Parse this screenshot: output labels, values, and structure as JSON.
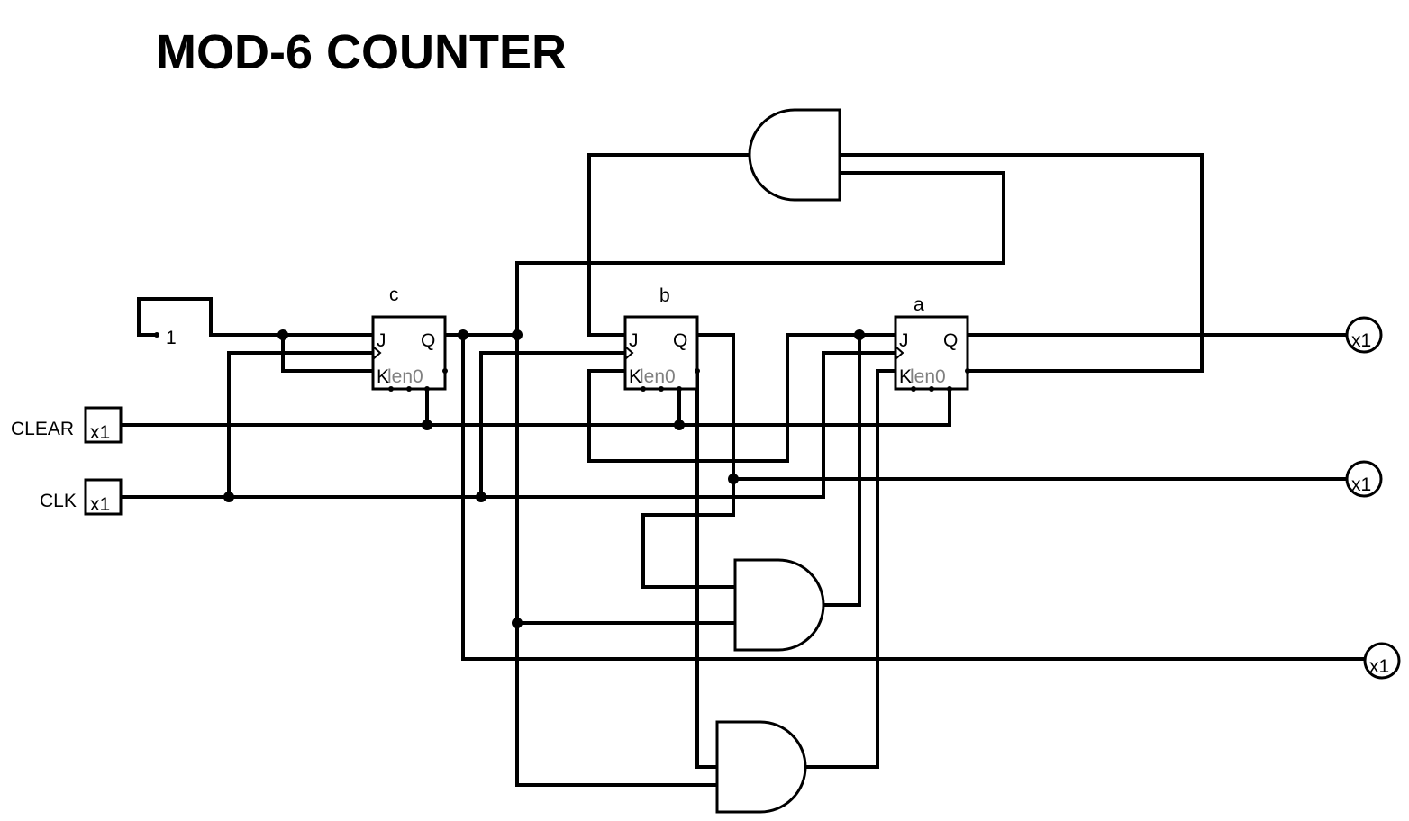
{
  "title": "MOD-6 COUNTER",
  "constant": {
    "value": "1"
  },
  "inputs": [
    {
      "label": "CLEAR",
      "value": "x1"
    },
    {
      "label": "CLK",
      "value": "x1"
    }
  ],
  "flip_flops": [
    {
      "name": "c",
      "j": "J",
      "k": "K",
      "q": "Q",
      "extra": "len0"
    },
    {
      "name": "b",
      "j": "J",
      "k": "K",
      "q": "Q",
      "extra": "len0"
    },
    {
      "name": "a",
      "j": "J",
      "k": "K",
      "q": "Q",
      "extra": "len0"
    }
  ],
  "outputs": [
    {
      "value": "x1"
    },
    {
      "value": "x1"
    },
    {
      "value": "x1"
    }
  ]
}
